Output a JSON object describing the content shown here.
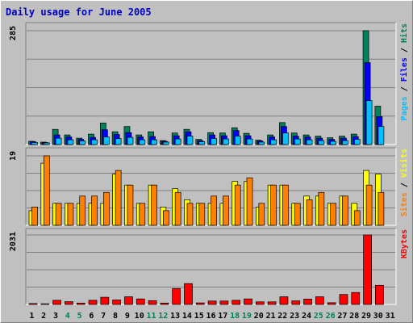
{
  "title": "Daily usage for June 2005",
  "colors": {
    "hits": "#00805c",
    "files": "#0000ff",
    "pages": "#00c0ff",
    "visits": "#ffff00",
    "sites": "#ff8000",
    "kbytes": "#ff0000",
    "weekend_label": "#00805c",
    "weekday_label": "#000000",
    "panel_bg": "#c0c0c0",
    "grid": "#808080"
  },
  "chart_data": [
    {
      "type": "bar",
      "panel": "hits-files-pages",
      "ymax_label": "285",
      "ylim": [
        0,
        285
      ],
      "right_label_parts": [
        {
          "text": "Pages",
          "color": "#00c0ff"
        },
        {
          "text": " / ",
          "color": "#000000"
        },
        {
          "text": "Files",
          "color": "#0000ff"
        },
        {
          "text": " / ",
          "color": "#000000"
        },
        {
          "text": "Hits",
          "color": "#00805c"
        }
      ],
      "categories": [
        "1",
        "2",
        "3",
        "4",
        "5",
        "6",
        "7",
        "8",
        "9",
        "10",
        "11",
        "12",
        "13",
        "14",
        "15",
        "16",
        "17",
        "18",
        "19",
        "20",
        "21",
        "22",
        "23",
        "24",
        "25",
        "26",
        "27",
        "28",
        "29",
        "30",
        "31"
      ],
      "series": [
        {
          "name": "Hits",
          "color": "#00805c",
          "values": [
            8,
            6,
            38,
            24,
            16,
            26,
            54,
            32,
            45,
            24,
            32,
            10,
            29,
            38,
            13,
            30,
            29,
            42,
            28,
            11,
            24,
            55,
            29,
            24,
            21,
            17,
            21,
            26,
            285,
            96,
            0
          ]
        },
        {
          "name": "Files",
          "color": "#0000ff",
          "values": [
            7,
            5,
            24,
            19,
            13,
            18,
            37,
            25,
            30,
            19,
            20,
            8,
            22,
            32,
            10,
            24,
            22,
            35,
            22,
            9,
            19,
            45,
            21,
            19,
            16,
            13,
            16,
            20,
            205,
            70,
            0
          ]
        },
        {
          "name": "Pages",
          "color": "#00c0ff",
          "values": [
            5,
            4,
            16,
            12,
            9,
            12,
            19,
            15,
            18,
            12,
            12,
            6,
            14,
            21,
            7,
            15,
            14,
            21,
            14,
            6,
            12,
            29,
            14,
            12,
            10,
            8,
            10,
            13,
            110,
            45,
            0
          ]
        }
      ]
    },
    {
      "type": "bar",
      "panel": "visits-sites",
      "ymax_label": "19",
      "ylim": [
        0,
        19
      ],
      "right_label_parts": [
        {
          "text": "Sites",
          "color": "#ff8000"
        },
        {
          "text": " / ",
          "color": "#000000"
        },
        {
          "text": "Visits",
          "color": "#ffff00"
        }
      ],
      "categories": [
        "1",
        "2",
        "3",
        "4",
        "5",
        "6",
        "7",
        "8",
        "9",
        "10",
        "11",
        "12",
        "13",
        "14",
        "15",
        "16",
        "17",
        "18",
        "19",
        "20",
        "21",
        "22",
        "23",
        "24",
        "25",
        "26",
        "27",
        "28",
        "29",
        "30",
        "31"
      ],
      "series": [
        {
          "name": "Visits",
          "color": "#ffff00",
          "values": [
            4,
            17,
            6,
            6,
            6,
            6,
            6,
            14,
            11,
            6,
            11,
            5,
            10,
            7,
            6,
            6,
            6,
            12,
            12,
            5,
            11,
            11,
            6,
            8,
            8,
            6,
            8,
            6,
            15,
            14,
            0
          ]
        },
        {
          "name": "Sites",
          "color": "#ff8000",
          "values": [
            5,
            19,
            6,
            6,
            8,
            8,
            9,
            15,
            11,
            6,
            11,
            4,
            9,
            6,
            6,
            8,
            8,
            11,
            13,
            6,
            11,
            11,
            6,
            7,
            9,
            6,
            8,
            4,
            11,
            9,
            0
          ]
        }
      ]
    },
    {
      "type": "bar",
      "panel": "kbytes",
      "ymax_label": "2031",
      "ylim": [
        0,
        2031
      ],
      "right_label_parts": [
        {
          "text": "KBytes",
          "color": "#ff0000"
        }
      ],
      "categories": [
        "1",
        "2",
        "3",
        "4",
        "5",
        "6",
        "7",
        "8",
        "9",
        "10",
        "11",
        "12",
        "13",
        "14",
        "15",
        "16",
        "17",
        "18",
        "19",
        "20",
        "21",
        "22",
        "23",
        "24",
        "25",
        "26",
        "27",
        "28",
        "29",
        "30",
        "31"
      ],
      "series": [
        {
          "name": "KBytes",
          "color": "#ff0000",
          "values": [
            25,
            18,
            120,
            80,
            40,
            120,
            210,
            130,
            225,
            160,
            110,
            40,
            465,
            610,
            45,
            100,
            100,
            120,
            160,
            75,
            75,
            225,
            105,
            155,
            225,
            50,
            290,
            350,
            2031,
            560,
            0
          ]
        }
      ]
    }
  ],
  "x_axis": {
    "labels": [
      "1",
      "2",
      "3",
      "4",
      "5",
      "6",
      "7",
      "8",
      "9",
      "10",
      "11",
      "12",
      "13",
      "14",
      "15",
      "16",
      "17",
      "18",
      "19",
      "20",
      "21",
      "22",
      "23",
      "24",
      "25",
      "26",
      "27",
      "28",
      "29",
      "30",
      "31"
    ],
    "weekend_days": [
      "4",
      "5",
      "11",
      "12",
      "18",
      "19",
      "25",
      "26"
    ]
  }
}
